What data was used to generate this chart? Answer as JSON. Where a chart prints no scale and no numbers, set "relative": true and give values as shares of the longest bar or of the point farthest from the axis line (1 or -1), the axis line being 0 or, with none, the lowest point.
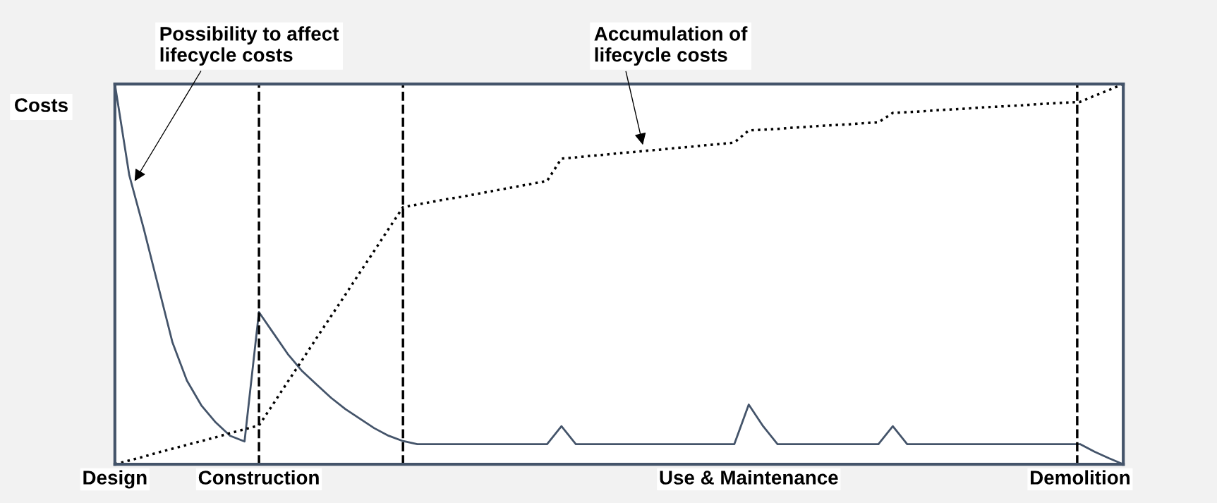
{
  "chart_data": {
    "type": "line",
    "relative": true,
    "ylabel": "Costs",
    "marker": "none",
    "categories": [
      "Design",
      null,
      null,
      null,
      null,
      null,
      null,
      null,
      null,
      null,
      "Construction",
      null,
      null,
      null,
      null,
      null,
      null,
      null,
      null,
      null,
      null,
      null,
      null,
      null,
      null,
      null,
      null,
      null,
      null,
      null,
      null,
      null,
      null,
      null,
      null,
      null,
      null,
      null,
      null,
      null,
      null,
      null,
      null,
      null,
      "Use & Maintenance",
      null,
      null,
      null,
      null,
      null,
      null,
      null,
      null,
      null,
      null,
      null,
      null,
      null,
      null,
      null,
      null,
      null,
      null,
      null,
      null,
      null,
      null,
      "Demolition",
      null,
      null,
      null
    ],
    "series": [
      {
        "color": "#44546a",
        "line_style": "solid",
        "values": [
          1,
          0.76,
          0.62,
          0.47,
          0.32,
          0.22,
          0.155,
          0.11,
          0.075,
          0.06,
          0.4,
          0.345,
          0.29,
          0.245,
          0.21,
          0.175,
          0.145,
          0.12,
          0.095,
          0.075,
          0.061,
          0.053,
          0.053,
          0.053,
          0.053,
          0.053,
          0.053,
          0.053,
          0.053,
          0.053,
          0.053,
          0.1,
          0.053,
          0.053,
          0.053,
          0.053,
          0.053,
          0.053,
          0.053,
          0.053,
          0.053,
          0.053,
          0.053,
          0.053,
          0.157,
          0.1,
          0.053,
          0.053,
          0.053,
          0.053,
          0.053,
          0.053,
          0.053,
          0.053,
          0.1,
          0.053,
          0.053,
          0.053,
          0.053,
          0.053,
          0.053,
          0.053,
          0.053,
          0.053,
          0.053,
          0.053,
          0.053,
          0.053,
          0.033,
          0.016,
          0
        ]
      },
      {
        "color": "#000000",
        "line_style": "dotted",
        "values": [
          0,
          0.01,
          0.02,
          0.031,
          0.041,
          0.051,
          0.061,
          0.071,
          0.082,
          0.092,
          0.102,
          0.159,
          0.217,
          0.274,
          0.332,
          0.389,
          0.446,
          0.504,
          0.561,
          0.619,
          0.676,
          0.683,
          0.69,
          0.697,
          0.703,
          0.71,
          0.717,
          0.724,
          0.731,
          0.738,
          0.745,
          0.804,
          0.807,
          0.811,
          0.814,
          0.818,
          0.821,
          0.825,
          0.828,
          0.832,
          0.835,
          0.839,
          0.842,
          0.846,
          0.878,
          0.88,
          0.882,
          0.885,
          0.887,
          0.89,
          0.892,
          0.894,
          0.897,
          0.899,
          0.924,
          0.926,
          0.928,
          0.931,
          0.933,
          0.935,
          0.938,
          0.94,
          0.942,
          0.944,
          0.947,
          0.949,
          0.951,
          0.953,
          0.969,
          0.984,
          1
        ]
      }
    ],
    "annotations": [
      "Possibility to affect\nlifecycle costs",
      "Accumulation of\nlifecycle costs"
    ]
  }
}
